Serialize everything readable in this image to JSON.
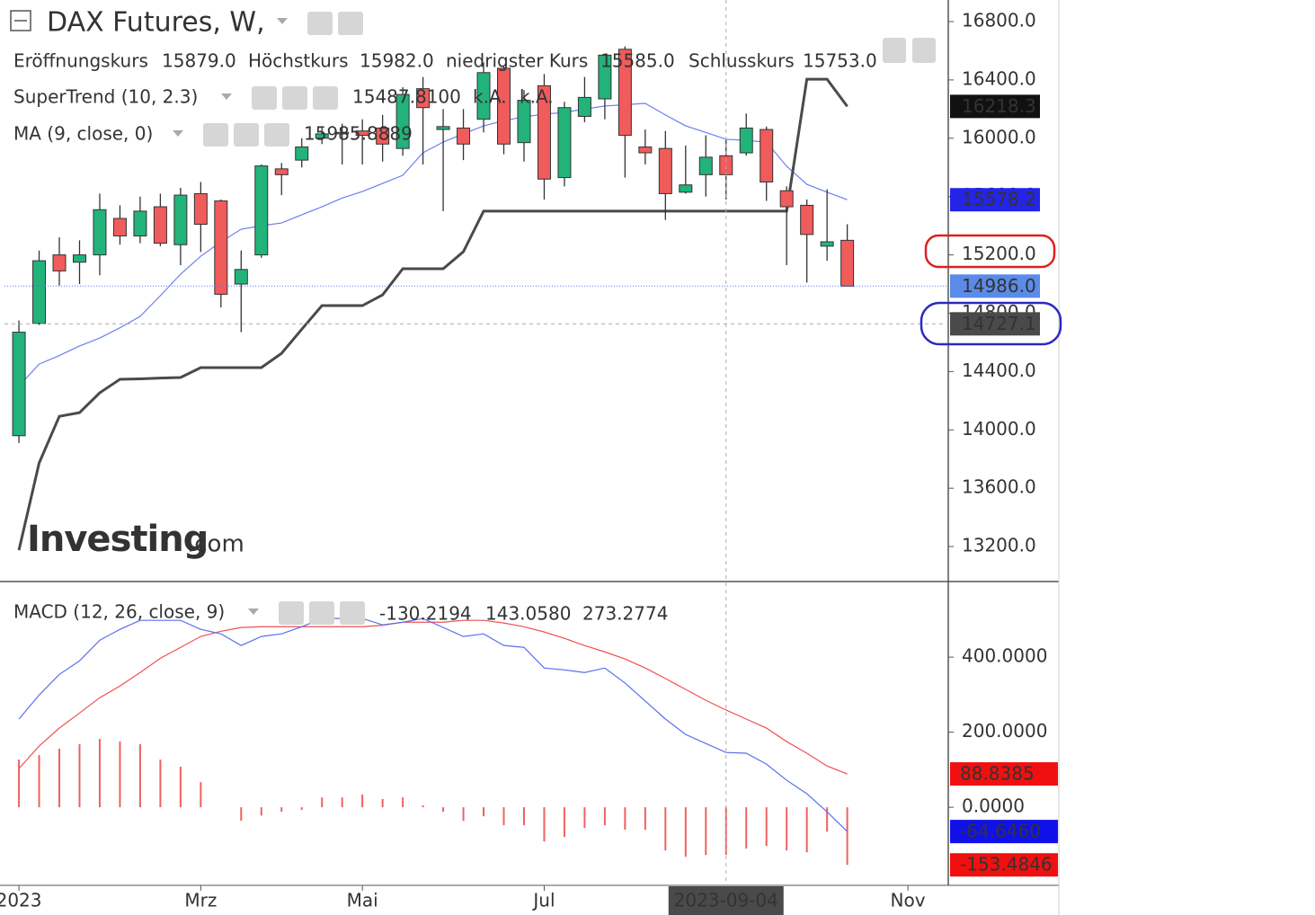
{
  "chart_data": [
    {
      "type": "candlestick",
      "title": "DAX Futures, W,",
      "ohlc_legend": [
        {
          "label": "Eröffnungskurs",
          "value": "15879.0"
        },
        {
          "label": "Höchstkurs",
          "value": "15982.0"
        },
        {
          "label": "niedrigster Kurs",
          "value": "15585.0"
        },
        {
          "label": "Schlusskurs",
          "value": "15753.0"
        }
      ],
      "x": [
        "2023-01-02",
        "2023-01-09",
        "2023-01-16",
        "2023-01-23",
        "2023-01-30",
        "2023-02-06",
        "2023-02-13",
        "2023-02-20",
        "2023-02-27",
        "2023-03-06",
        "2023-03-13",
        "2023-03-20",
        "2023-03-27",
        "2023-04-03",
        "2023-04-10",
        "2023-04-17",
        "2023-04-24",
        "2023-05-01",
        "2023-05-08",
        "2023-05-15",
        "2023-05-22",
        "2023-05-29",
        "2023-06-05",
        "2023-06-12",
        "2023-06-19",
        "2023-06-26",
        "2023-07-03",
        "2023-07-10",
        "2023-07-17",
        "2023-07-24",
        "2023-07-31",
        "2023-08-07",
        "2023-08-14",
        "2023-08-21",
        "2023-08-28",
        "2023-09-04",
        "2023-09-11",
        "2023-09-18",
        "2023-09-25",
        "2023-10-02",
        "2023-10-09",
        "2023-10-16"
      ],
      "open": [
        13960,
        14730,
        15200,
        15150,
        15200,
        15450,
        15330,
        15530,
        15270,
        15620,
        15570,
        15000,
        15200,
        15790,
        15850,
        16000,
        16030,
        16050,
        16070,
        15930,
        16340,
        16060,
        16070,
        16130,
        16480,
        15970,
        16360,
        15730,
        16150,
        16270,
        16610,
        15940,
        15930,
        15630,
        15750,
        15880,
        15900,
        16060,
        15640,
        15540,
        15260,
        15300
      ],
      "high": [
        14750,
        15230,
        15320,
        15300,
        15620,
        15540,
        15600,
        15620,
        15660,
        15700,
        15580,
        15230,
        15820,
        15830,
        16000,
        16070,
        16100,
        16130,
        16160,
        16350,
        16420,
        16200,
        16200,
        16520,
        16500,
        16330,
        16440,
        16250,
        16420,
        16580,
        16630,
        16060,
        16050,
        15950,
        16020,
        15990,
        16170,
        16080,
        15670,
        15580,
        15650,
        15410
      ],
      "low": [
        13910,
        14720,
        14990,
        15000,
        15060,
        15270,
        15280,
        15260,
        15130,
        15220,
        14840,
        14670,
        15180,
        15610,
        15800,
        15960,
        15820,
        15820,
        15840,
        15880,
        15820,
        15500,
        15850,
        16040,
        15890,
        15840,
        15580,
        15670,
        16110,
        16130,
        15730,
        15820,
        15440,
        15620,
        15600,
        15580,
        15880,
        15570,
        15130,
        15010,
        15160,
        14986
      ],
      "close": [
        14670,
        15160,
        15090,
        15200,
        15510,
        15330,
        15500,
        15280,
        15610,
        15410,
        14930,
        15100,
        15810,
        15750,
        15940,
        16030,
        16040,
        16020,
        15960,
        16300,
        16210,
        16080,
        15960,
        16450,
        15960,
        16260,
        15720,
        16210,
        16280,
        16570,
        16020,
        15900,
        15620,
        15680,
        15870,
        15750,
        16070,
        15700,
        15530,
        15340,
        15290,
        14986
      ],
      "up_color": "#22b37a",
      "down_color": "#f05b5b",
      "supertrend": {
        "name": "SuperTrend (10, 2.3)",
        "legend_values": [
          "15487.8100",
          "k.A.",
          "k.A."
        ],
        "color": "#4a4a4a",
        "values": [
          13175,
          13773,
          14093,
          14118,
          14254,
          14347,
          14350,
          14355,
          14359,
          14427,
          14427,
          14427,
          14427,
          14525,
          14690,
          14852,
          14852,
          14852,
          14926,
          15105,
          15105,
          15105,
          15222,
          15500,
          15500,
          15500,
          15500,
          15500,
          15500,
          15500,
          15500,
          15500,
          15500,
          15500,
          15500,
          15500,
          15500,
          15500,
          15500,
          16405,
          16405,
          16218.3
        ]
      },
      "ma": {
        "name": "MA (9, close, 0)",
        "legend_value": "15985.8889",
        "color": "#2424e8",
        "line_color": "#6b7ff0",
        "values": [
          14300,
          14451,
          14510,
          14575,
          14630,
          14700,
          14778,
          14920,
          15068,
          15191,
          15290,
          15376,
          15400,
          15419,
          15475,
          15530,
          15590,
          15635,
          15690,
          15746,
          15900,
          15974,
          16030,
          16085,
          16120,
          16147,
          16165,
          16177,
          16200,
          16221,
          16230,
          16239,
          16160,
          16085,
          16040,
          15993,
          15985,
          15974,
          15808,
          15684,
          15630,
          15578.2
        ]
      },
      "last_price": {
        "value": 14986,
        "label": "14986.0"
      },
      "crosshair": {
        "x": "2023-09-04",
        "y": 14727.1
      },
      "ylim": [
        12960,
        16948
      ],
      "yticks": [
        {
          "value": 13200,
          "label": "13200.0"
        },
        {
          "value": 13600,
          "label": "13600.0"
        },
        {
          "value": 14000,
          "label": "14000.0"
        },
        {
          "value": 14400,
          "label": "14400.0"
        },
        {
          "value": 14800,
          "label": "14800.0"
        },
        {
          "value": 15200,
          "label": "15200.0"
        },
        {
          "value": 15600,
          "label": "15600.0"
        },
        {
          "value": 16000,
          "label": "16000.0"
        },
        {
          "value": 16400,
          "label": "16400.0"
        },
        {
          "value": 16800,
          "label": "16800.0"
        }
      ],
      "xlim": [
        "2022-12-28",
        "2023-11-20"
      ],
      "xticks": [
        {
          "value": "2023-01-02",
          "label": "2023"
        },
        {
          "value": "2023-03-06",
          "label": "Mrz"
        },
        {
          "value": "2023-05-01",
          "label": "Mai"
        },
        {
          "value": "2023-07-03",
          "label": "Jul"
        },
        {
          "value": "2023-11-06",
          "label": "Nov"
        }
      ],
      "watermark": [
        "Investing",
        ".com"
      ]
    },
    {
      "type": "macd",
      "title": "MACD (12, 26, close, 9)",
      "legend_values": [
        "-130.2194",
        "143.0580",
        "273.2774"
      ],
      "legend_colors": [
        "#e81010",
        "#1a1ae0",
        "#e81010"
      ],
      "macd": {
        "color": "#5a6ef0",
        "values": [
          235,
          299,
          354,
          390,
          445,
          474,
          498,
          498,
          498,
          474,
          462,
          431,
          455,
          462,
          481,
          503,
          503,
          503,
          486,
          493,
          503,
          479,
          455,
          462,
          431,
          426,
          371,
          366,
          359,
          371,
          331,
          283,
          235,
          194,
          170,
          146,
          144,
          115,
          72,
          36,
          -12,
          -64.646
        ],
        "value_label": "-64.6460"
      },
      "signal": {
        "color": "#f05050",
        "values": [
          103,
          163,
          211,
          251,
          292,
          323,
          359,
          397,
          426,
          455,
          469,
          479,
          481,
          481,
          481,
          481,
          481,
          481,
          485,
          493,
          493,
          493,
          498,
          498,
          491,
          481,
          467,
          450,
          431,
          414,
          395,
          371,
          343,
          314,
          285,
          259,
          235,
          211,
          175,
          144,
          110,
          88.8385
        ]
      },
      "histogram": {
        "color": "#f06060",
        "values": [
          127,
          139,
          156,
          168,
          182,
          175,
          168,
          127,
          108,
          67,
          0,
          -36,
          -22,
          -12,
          -7,
          26,
          26,
          34,
          22,
          26,
          5,
          -12,
          -36,
          -24,
          -48,
          -48,
          -91,
          -79,
          -55,
          -48,
          -60,
          -60,
          -115,
          -132,
          -127,
          -127,
          -110,
          -103,
          -115,
          -120,
          -65,
          -153.4846
        ]
      },
      "ylim": [
        -208,
        599
      ],
      "yticks": [
        {
          "value": 0,
          "label": "0.0000"
        },
        {
          "value": 200,
          "label": "200.0000"
        },
        {
          "value": 400,
          "label": "400.0000"
        }
      ]
    }
  ]
}
